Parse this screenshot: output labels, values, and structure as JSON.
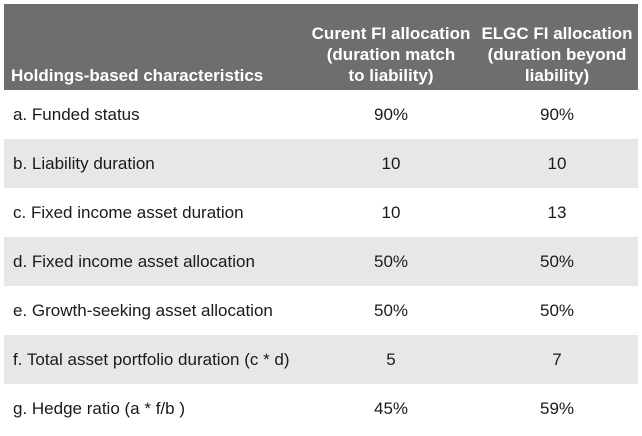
{
  "table": {
    "headers": {
      "col1": "Holdings-based characteristics",
      "col2_lines": [
        "Curent FI allocation",
        "(duration match",
        "to liability)"
      ],
      "col3_lines": [
        "ELGC FI allocation",
        "(duration beyond",
        "liability)"
      ]
    },
    "rows": [
      {
        "label": "a. Funded status",
        "current": "90%",
        "elgc": "90%"
      },
      {
        "label": "b. Liability duration",
        "current": "10",
        "elgc": "10"
      },
      {
        "label": "c. Fixed income asset duration",
        "current": "10",
        "elgc": "13"
      },
      {
        "label": "d. Fixed income asset allocation",
        "current": "50%",
        "elgc": "50%"
      },
      {
        "label": "e. Growth-seeking asset allocation",
        "current": "50%",
        "elgc": "50%"
      },
      {
        "label": "f. Total asset portfolio duration (c * d)",
        "current": "5",
        "elgc": "7"
      },
      {
        "label": "g. Hedge ratio (a * f/b )",
        "current": "45%",
        "elgc": "59%"
      }
    ]
  },
  "colors": {
    "header_bg": "#6e6e70",
    "stripe_bg": "#e6e7e8",
    "text": "#1a1a1a"
  }
}
